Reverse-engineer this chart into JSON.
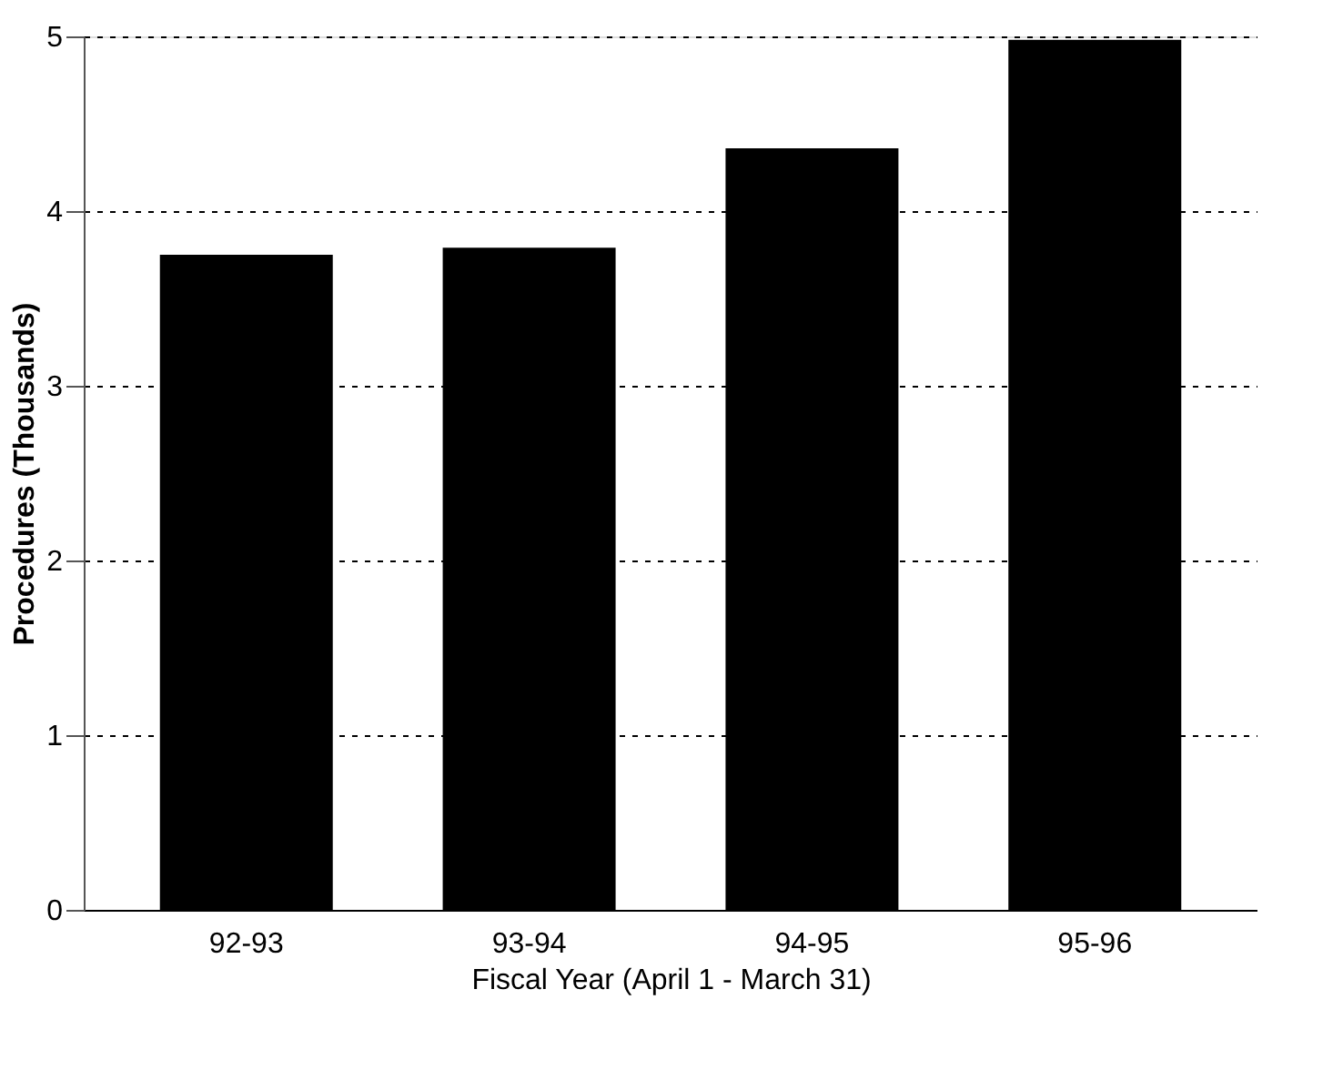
{
  "chart_data": {
    "type": "bar",
    "xlabel": "Fiscal Year (April 1 - March 31)",
    "ylabel": "Procedures (Thousands)",
    "categories": [
      "92-93",
      "93-94",
      "94-95",
      "95-96"
    ],
    "values": [
      3.75,
      3.79,
      4.36,
      4.98
    ],
    "color": "#000000",
    "ylim": [
      0,
      5
    ],
    "yticks": [
      0,
      1,
      2,
      3,
      4,
      5
    ],
    "grid": "y"
  }
}
